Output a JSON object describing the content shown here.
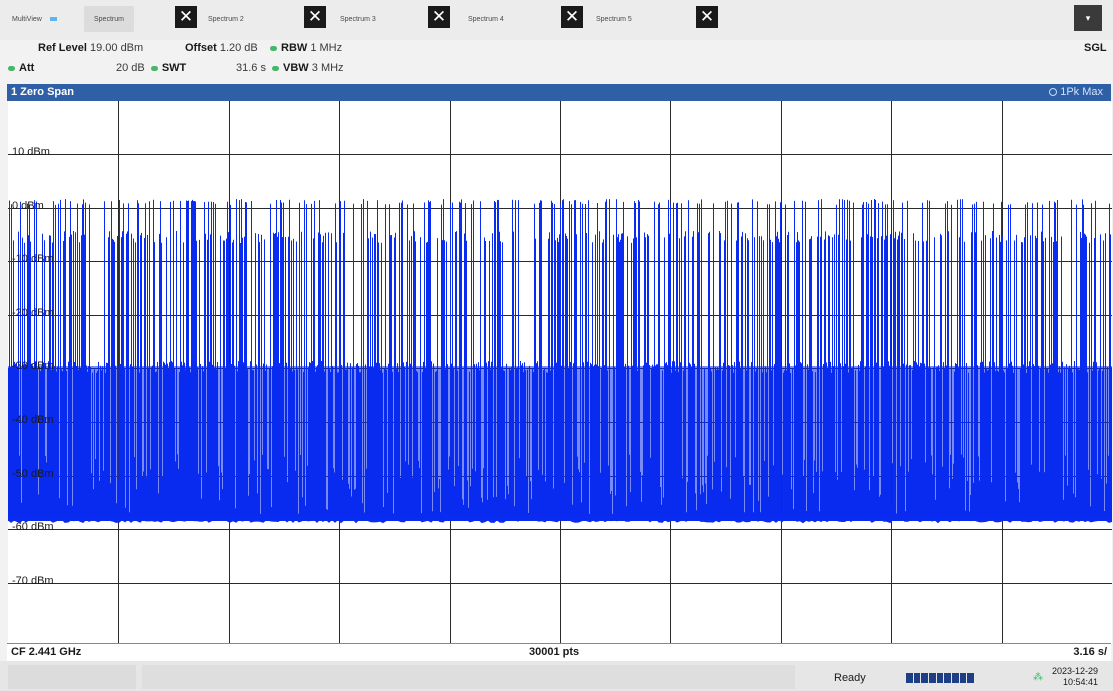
{
  "tabs": [
    {
      "label": "MultiView"
    },
    {
      "label": "Spectrum"
    },
    {
      "label": "Spectrum 2"
    },
    {
      "label": "Spectrum 3"
    },
    {
      "label": "Spectrum 4"
    },
    {
      "label": "Spectrum 5"
    }
  ],
  "close_glyph": "✕",
  "mode": {
    "sweep": "SGL",
    "menu_glyph": "▾"
  },
  "settings": {
    "ref_level_label": "Ref Level",
    "ref_level_value": "19.00 dBm",
    "offset_label": "Offset",
    "offset_value": "1.20 dB",
    "rbw_label": "RBW",
    "rbw_value": "1 MHz",
    "att_label": "Att",
    "att_value": "20 dB",
    "swt_label": "SWT",
    "swt_value": "31.6 s",
    "vbw_label": "VBW",
    "vbw_value": "3 MHz"
  },
  "diagram": {
    "title": "1 Zero Span",
    "trace": "1Pk Max",
    "y_labels": [
      "10 dBm",
      "0 dBm",
      "-10 dBm",
      "-20 dBm",
      "-30 dBm",
      "-40 dBm",
      "-50 dBm",
      "-60 dBm",
      "-70 dBm"
    ],
    "footer_cf": "CF 2.441 GHz",
    "footer_pts": "30001 pts",
    "footer_div": "3.16 s/"
  },
  "colors": {
    "trace": "#0a2cf0",
    "header": "#2f5fa5",
    "grid": "#2a2a2a"
  },
  "status": {
    "state": "Ready",
    "date": "2023-12-29",
    "time": "10:54:41",
    "network_icon": "network-icon"
  }
}
